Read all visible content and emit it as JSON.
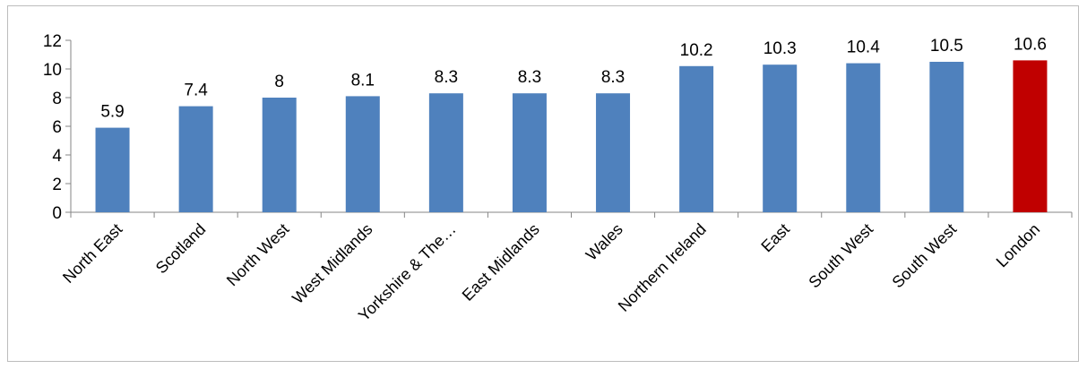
{
  "chart_data": {
    "type": "bar",
    "title": "",
    "xlabel": "",
    "ylabel": "",
    "ylim": [
      0,
      12
    ],
    "yticks": [
      0,
      2,
      4,
      6,
      8,
      10,
      12
    ],
    "grid": false,
    "legend": "none",
    "categories": [
      "North East",
      "Scotland",
      "North West",
      "West Midlands",
      "Yorkshire & The…",
      "East Midlands",
      "Wales",
      "Northern Ireland",
      "East",
      "South West",
      "South West",
      "London"
    ],
    "values": [
      5.9,
      7.4,
      8,
      8.1,
      8.3,
      8.3,
      8.3,
      10.2,
      10.3,
      10.4,
      10.5,
      10.6
    ],
    "data_labels": [
      "5.9",
      "7.4",
      "8",
      "8.1",
      "8.3",
      "8.3",
      "8.3",
      "10.2",
      "10.3",
      "10.4",
      "10.5",
      "10.6"
    ],
    "colors": {
      "default_bar": "#4f81bd",
      "highlight_bar": "#c00000",
      "axis": "#868686"
    },
    "highlight_index": 11
  }
}
